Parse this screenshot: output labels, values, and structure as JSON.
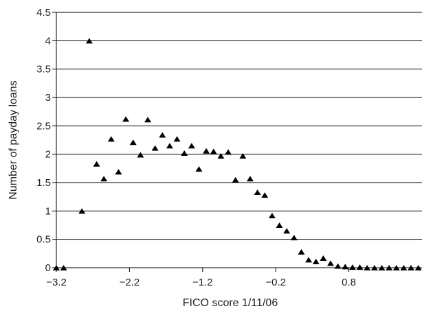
{
  "chart_data": {
    "type": "scatter",
    "title": "",
    "xlabel": "FICO score 1/11/06",
    "ylabel": "Number of payday loans",
    "xlim": [
      -3.2,
      1.8
    ],
    "ylim": [
      0,
      4.5
    ],
    "x_ticks": [
      -3.2,
      -2.2,
      -1.2,
      -0.2,
      0.8
    ],
    "x_tick_labels": [
      "−3.2",
      "−2.2",
      "−1.2",
      "−0.2",
      "0.8"
    ],
    "y_ticks": [
      0,
      0.5,
      1,
      1.5,
      2,
      2.5,
      3,
      3.5,
      4,
      4.5
    ],
    "y_tick_labels": [
      "0",
      "0.5",
      "1",
      "1.5",
      "2",
      "2.5",
      "3",
      "3.5",
      "4",
      "4.5"
    ],
    "grid": "horizontal",
    "marker": "triangle",
    "marker_color": "#000000",
    "series": [
      {
        "x": [
          -3.2,
          -3.1,
          -2.85,
          -2.75,
          -2.65,
          -2.55,
          -2.45,
          -2.35,
          -2.25,
          -2.15,
          -2.05,
          -1.95,
          -1.85,
          -1.75,
          -1.65,
          -1.55,
          -1.45,
          -1.35,
          -1.25,
          -1.15,
          -1.05,
          -0.95,
          -0.85,
          -0.75,
          -0.65,
          -0.55,
          -0.45,
          -0.35,
          -0.25,
          -0.15,
          -0.05,
          0.05,
          0.15,
          0.25,
          0.35,
          0.45,
          0.55,
          0.65,
          0.75,
          0.85,
          0.95,
          1.05,
          1.15,
          1.25,
          1.35,
          1.45,
          1.55,
          1.65,
          1.75
        ],
        "y": [
          0,
          0,
          1.0,
          4.0,
          1.83,
          1.57,
          2.27,
          1.69,
          2.62,
          2.21,
          1.99,
          2.61,
          2.11,
          2.34,
          2.15,
          2.27,
          2.02,
          2.15,
          1.74,
          2.06,
          2.05,
          1.97,
          2.04,
          1.55,
          1.97,
          1.57,
          1.33,
          1.28,
          0.92,
          0.75,
          0.65,
          0.53,
          0.28,
          0.14,
          0.11,
          0.17,
          0.08,
          0.03,
          0.02,
          0.01,
          0.01,
          0,
          0,
          0,
          0,
          0,
          0,
          0,
          0
        ]
      }
    ]
  }
}
